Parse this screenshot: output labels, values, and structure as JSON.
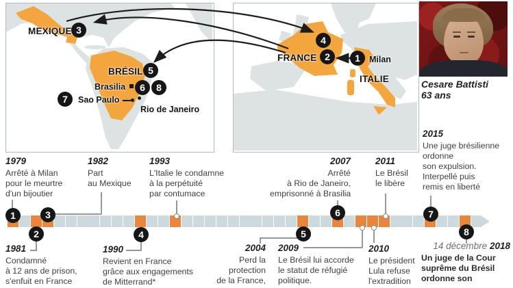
{
  "infographic": {
    "portrait": {
      "name": "Cesare Battisti",
      "age": "63 ans"
    },
    "map_left": {
      "mexique": "MEXIQUE",
      "bresil": "BRÉSIL",
      "brasilia": "Brasilia",
      "sao_paulo": "Sao Paulo",
      "rio": "Rio de Janeiro",
      "badge_mexique": "3",
      "badge_bresil": "5",
      "badge_brasilia_1": "6",
      "badge_brasilia_2": "8",
      "badge_sao_paulo": "7"
    },
    "map_right": {
      "france": "FRANCE",
      "italie": "ITALIE",
      "milan": "Milan",
      "badge_milan": "1",
      "badge_france": "2",
      "badge_france_nord": "4"
    },
    "timeline": {
      "start_year": 1979,
      "end_year": 2018,
      "highlight_years": [
        1979,
        1981,
        1982,
        1990,
        1993,
        2004,
        2007,
        2009,
        2010,
        2011,
        2015,
        2018
      ],
      "events": [
        {
          "num": "1",
          "year": "1979",
          "lines": [
            "Arrêté à Milan",
            "pour le meurtre",
            "d'un bijoutier"
          ]
        },
        {
          "num": "2",
          "year": "1981",
          "lines": [
            "Condamné",
            "à 12 ans de prison,",
            "s'enfuit en France"
          ]
        },
        {
          "num": "3",
          "year": "1982",
          "lines": [
            "Part",
            "au Mexique"
          ]
        },
        {
          "num": "4",
          "year": "1990",
          "lines": [
            "Revient en France",
            "grâce aux engagements",
            "de Mitterrand*"
          ]
        },
        {
          "year": "1993",
          "lines": [
            "L'Italie le condamne",
            "à la perpétuité",
            "par contumace"
          ]
        },
        {
          "num": "5",
          "year": "2004",
          "lines": [
            "Perd la",
            "protection",
            "de la France,"
          ]
        },
        {
          "num": "6",
          "year": "2007",
          "lines": [
            "Arrêté",
            "à Rio de Janeiro,",
            "emprisonné à Brasilia"
          ]
        },
        {
          "year": "2009",
          "lines": [
            "Le Brésil lui accorde",
            "le statut de réfugié",
            "politique."
          ]
        },
        {
          "year": "2010",
          "lines": [
            "Le président",
            "Lula refuse",
            "l'extradition"
          ]
        },
        {
          "year": "2011",
          "lines": [
            "Le Brésil",
            "le libère"
          ]
        },
        {
          "num": "7",
          "year": "2015",
          "lines": [
            "Une juge brésilienne",
            "ordonne",
            "son expulsion.",
            "Interpellé puis",
            "remis en liberté"
          ]
        },
        {
          "num": "8",
          "date_prefix": "14 décembre ",
          "year": "2018",
          "lines": [
            "Un juge de la Cour",
            "suprême du Brésil",
            "ordonne son"
          ]
        }
      ]
    },
    "colors": {
      "land_gray": "#dce3e2",
      "country_orange": "#f4a63e",
      "strip_blue": "#ccd9dd",
      "strip_orange": "#e8853e",
      "badge_black": "#161616"
    }
  }
}
